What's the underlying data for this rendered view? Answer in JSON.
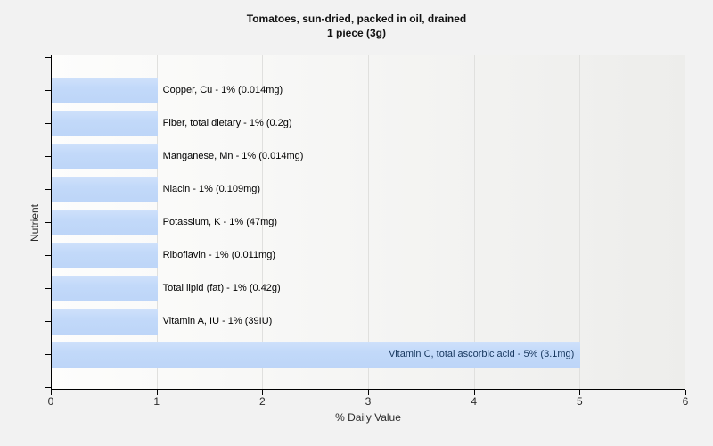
{
  "title": {
    "line1": "Tomatoes, sun-dried, packed in oil, drained",
    "line2": "1 piece (3g)"
  },
  "chart_data": {
    "type": "bar",
    "orientation": "horizontal",
    "title": "Tomatoes, sun-dried, packed in oil, drained",
    "subtitle": "1 piece (3g)",
    "xlabel": "% Daily Value",
    "ylabel": "Nutrient",
    "xlim": [
      0,
      6
    ],
    "xticks": [
      0,
      1,
      2,
      3,
      4,
      5,
      6
    ],
    "grid": "vertical",
    "legend": "none",
    "bars": [
      {
        "nutrient": "Copper, Cu",
        "display": "Copper, Cu - 1% (0.014mg)",
        "value": 1,
        "label_position": "right"
      },
      {
        "nutrient": "Fiber, total dietary",
        "display": "Fiber, total dietary - 1% (0.2g)",
        "value": 1,
        "label_position": "right"
      },
      {
        "nutrient": "Manganese, Mn",
        "display": "Manganese, Mn - 1% (0.014mg)",
        "value": 1,
        "label_position": "right"
      },
      {
        "nutrient": "Niacin",
        "display": "Niacin - 1% (0.109mg)",
        "value": 1,
        "label_position": "right"
      },
      {
        "nutrient": "Potassium, K",
        "display": "Potassium, K - 1% (47mg)",
        "value": 1,
        "label_position": "right"
      },
      {
        "nutrient": "Riboflavin",
        "display": "Riboflavin - 1% (0.011mg)",
        "value": 1,
        "label_position": "right"
      },
      {
        "nutrient": "Total lipid (fat)",
        "display": "Total lipid (fat) - 1% (0.42g)",
        "value": 1,
        "label_position": "right"
      },
      {
        "nutrient": "Vitamin A, IU",
        "display": "Vitamin A, IU - 1% (39IU)",
        "value": 1,
        "label_position": "right"
      },
      {
        "nutrient": "Vitamin C, total ascorbic acid",
        "display": "Vitamin C, total ascorbic acid - 5% (3.1mg)",
        "value": 5,
        "label_position": "inside"
      }
    ]
  },
  "colors": {
    "page_bg": "#f2f2f2",
    "plot_bg_left": "#fdfdfc",
    "plot_bg_right": "#ededeb",
    "bar_fill": "#c2d9f9",
    "grid": "#e0e0de",
    "axis": "#000000",
    "bar_label_text": "#000000",
    "inside_label_text": "#17375e",
    "tick_text": "#2b2b2b"
  }
}
